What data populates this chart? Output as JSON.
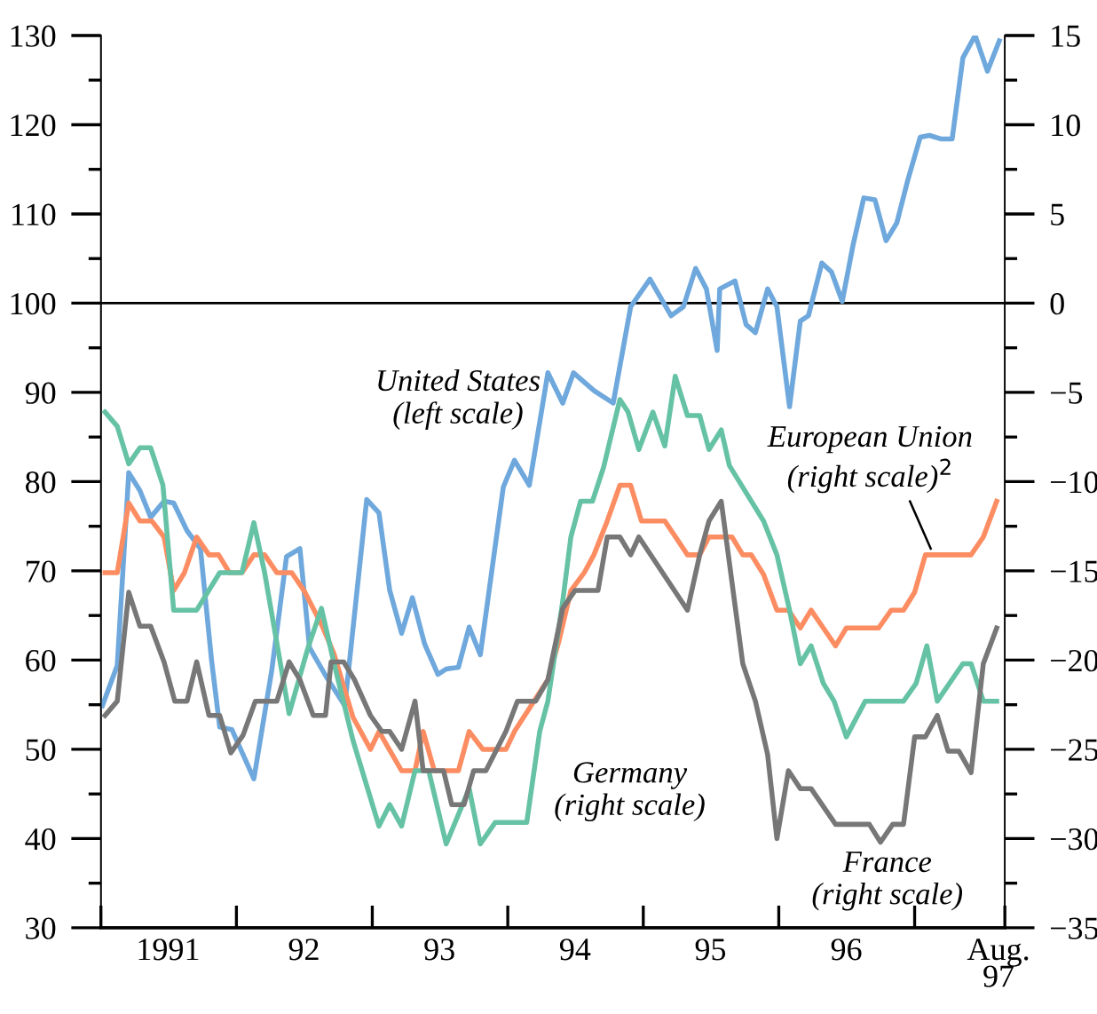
{
  "chart_data": {
    "type": "line",
    "xlim": [
      "1991-01-01",
      "1997-09-01"
    ],
    "xticks": [
      {
        "value": "1991-01-01",
        "label": null
      },
      {
        "value": "1992-01-01",
        "label": null
      },
      {
        "value": "1993-01-01",
        "label": null
      },
      {
        "value": "1994-01-01",
        "label": null
      },
      {
        "value": "1995-01-01",
        "label": null
      },
      {
        "value": "1996-01-01",
        "label": null
      },
      {
        "value": "1997-01-01",
        "label": null
      },
      {
        "value": "1997-09-01",
        "label": null
      },
      {
        "value": "1991-07-01",
        "label": "1991"
      },
      {
        "value": "1992-07-01",
        "label": "92"
      },
      {
        "value": "1993-07-01",
        "label": "93"
      },
      {
        "value": "1994-07-01",
        "label": "94"
      },
      {
        "value": "1995-07-01",
        "label": "95"
      },
      {
        "value": "1996-07-01",
        "label": "96"
      },
      {
        "value": "1997-08-15",
        "label": "Aug.\n97"
      }
    ],
    "ylim": [
      30,
      130
    ],
    "yticks": [
      30,
      {
        "value": 35,
        "label": null
      },
      40,
      {
        "value": 45,
        "label": null
      },
      50,
      {
        "value": 55,
        "label": null
      },
      60,
      {
        "value": 65,
        "label": null
      },
      70,
      {
        "value": 75,
        "label": null
      },
      80,
      {
        "value": 85,
        "label": null
      },
      90,
      {
        "value": 95,
        "label": null
      },
      100,
      {
        "value": 105,
        "label": null
      },
      110,
      {
        "value": 115,
        "label": null
      },
      120,
      {
        "value": 125,
        "label": null
      },
      130
    ],
    "y2lim": [
      -35,
      15
    ],
    "y2ticks": [
      -35,
      {
        "value": -32.5,
        "label": null
      },
      -30,
      {
        "value": -27.5,
        "label": null
      },
      -25,
      {
        "value": -22.5,
        "label": null
      },
      -20,
      {
        "value": -17.5,
        "label": null
      },
      -15,
      {
        "value": -12.5,
        "label": null
      },
      -10,
      {
        "value": -7.5,
        "label": null
      },
      -5,
      {
        "value": -2.5,
        "label": null
      },
      0,
      {
        "value": 2.5,
        "label": null
      },
      5,
      {
        "value": 7.5,
        "label": null
      },
      10,
      {
        "value": 12.5,
        "label": null
      },
      15
    ],
    "ref_lines": [
      {
        "axis": "y",
        "value": 100,
        "color": "#000000"
      }
    ],
    "grid": false,
    "legend": false,
    "marker": "none",
    "line_style": "solid",
    "series": [
      {
        "name": "United States\n(left scale)",
        "color": "#6fa8dc",
        "axis": "y",
        "x": [
          "1991-01-05",
          "1991-02-14",
          "1991-03-17",
          "1991-04-16",
          "1991-05-15",
          "1991-06-20",
          "1991-07-16",
          "1991-08-21",
          "1991-09-26",
          "1991-10-26",
          "1991-11-17",
          "1991-12-20",
          "1992-02-17",
          "1992-04-05",
          "1992-05-15",
          "1992-06-20",
          "1992-07-16",
          "1992-09-01",
          "1992-10-19",
          "1992-12-17",
          "1993-01-19",
          "1993-02-17",
          "1993-03-21",
          "1993-04-19",
          "1993-05-22",
          "1993-06-27",
          "1993-07-19",
          "1993-08-21",
          "1993-09-19",
          "1993-10-19",
          "1993-12-20",
          "1994-01-19",
          "1994-02-28",
          "1994-04-19",
          "1994-05-29",
          "1994-06-27",
          "1994-08-21",
          "1994-10-12",
          "1994-11-28",
          "1995-01-19",
          "1995-03-17",
          "1995-04-19",
          "1995-05-22",
          "1995-06-20",
          "1995-07-19",
          "1995-07-26",
          "1995-09-05",
          "1995-10-05",
          "1995-10-30",
          "1995-12-02",
          "1995-12-27",
          "1996-01-30",
          "1996-02-28",
          "1996-03-21",
          "1996-04-26",
          "1996-05-22",
          "1996-06-20",
          "1996-07-19",
          "1996-08-17",
          "1996-09-16",
          "1996-10-16",
          "1996-11-14",
          "1996-12-13",
          "1997-01-16",
          "1997-02-10",
          "1997-03-14",
          "1997-04-12",
          "1997-05-11",
          "1997-06-13",
          "1997-07-16",
          "1997-08-17"
        ],
        "values": [
          54.9,
          59.4,
          81,
          79,
          76,
          77.8,
          77.6,
          74.5,
          72.5,
          60,
          52.5,
          52.2,
          46.7,
          58.8,
          71.6,
          72.5,
          61.4,
          58,
          54.9,
          78,
          76.5,
          67.8,
          63,
          67,
          61.8,
          58.4,
          59,
          59.2,
          63.7,
          60.6,
          79.4,
          82.4,
          79.6,
          92.2,
          88.8,
          92.2,
          90.2,
          88.8,
          99.6,
          102.7,
          98.6,
          99.6,
          103.9,
          101.6,
          94.7,
          101.6,
          102.5,
          97.6,
          96.7,
          101.6,
          99.6,
          88.4,
          98,
          98.6,
          104.5,
          103.5,
          100.2,
          106.5,
          111.8,
          111.6,
          107,
          109,
          113.7,
          118.6,
          118.8,
          118.4,
          118.4,
          127.5,
          130,
          126,
          129.4
        ]
      },
      {
        "name": "European Union\n(right scale)$^{2}$",
        "color": "#fc8d62",
        "axis": "y2",
        "x": [
          "1991-01-12",
          "1991-02-14",
          "1991-03-17",
          "1991-04-16",
          "1991-05-18",
          "1991-06-20",
          "1991-07-16",
          "1991-08-14",
          "1991-09-16",
          "1991-10-19",
          "1991-11-14",
          "1991-12-13",
          "1992-01-16",
          "1992-02-17",
          "1992-03-17",
          "1992-04-19",
          "1992-05-29",
          "1992-07-01",
          "1992-08-17",
          "1992-09-19",
          "1992-11-10",
          "1992-12-27",
          "1993-01-19",
          "1993-03-21",
          "1993-04-26",
          "1993-05-18",
          "1993-06-17",
          "1993-08-21",
          "1993-09-19",
          "1993-10-26",
          "1993-12-27",
          "1994-01-19",
          "1994-04-19",
          "1994-05-18",
          "1994-06-20",
          "1994-07-26",
          "1994-08-21",
          "1994-09-26",
          "1994-10-30",
          "1994-11-28",
          "1994-12-27",
          "1995-02-28",
          "1995-04-30",
          "1995-06-02",
          "1995-06-27",
          "1995-08-28",
          "1995-09-26",
          "1995-10-19",
          "1995-11-21",
          "1995-12-27",
          "1996-01-27",
          "1996-02-28",
          "1996-03-28",
          "1996-04-30",
          "1996-06-02",
          "1996-07-01",
          "1996-09-26",
          "1996-10-30",
          "1996-12-02",
          "1997-01-01",
          "1997-01-30",
          "1997-06-02",
          "1997-07-05",
          "1997-08-10"
        ],
        "values": [
          -15.1,
          -15.1,
          -11.2,
          -12.2,
          -12.2,
          -13.1,
          -16.1,
          -15.1,
          -13.1,
          -14.1,
          -14.1,
          -15.1,
          -15.1,
          -14.1,
          -14.1,
          -15.1,
          -15.1,
          -16.1,
          -18,
          -19.6,
          -23.2,
          -25,
          -24,
          -26.2,
          -26.2,
          -24,
          -26.2,
          -26.2,
          -24,
          -25,
          -25,
          -24,
          -21.1,
          -19,
          -16.1,
          -15.1,
          -14.1,
          -12.2,
          -10.2,
          -10.2,
          -12.2,
          -12.2,
          -14.1,
          -14.1,
          -13.1,
          -13.1,
          -14.1,
          -14.1,
          -15.2,
          -17.2,
          -17.2,
          -18.2,
          -17.2,
          -18.2,
          -19.2,
          -18.2,
          -18.2,
          -17.2,
          -17.2,
          -16.2,
          -14.1,
          -14.1,
          -13.1,
          -11.1
        ]
      },
      {
        "name": "Germany\n(right scale)",
        "color": "#66c2a5",
        "axis": "y2",
        "x": [
          "1991-01-12",
          "1991-02-14",
          "1991-03-17",
          "1991-04-16",
          "1991-05-15",
          "1991-06-17",
          "1991-07-16",
          "1991-09-16",
          "1991-11-17",
          "1992-01-16",
          "1992-02-17",
          "1992-03-17",
          "1992-05-22",
          "1992-07-12",
          "1992-08-17",
          "1992-09-19",
          "1992-11-10",
          "1993-01-19",
          "1993-02-17",
          "1993-03-21",
          "1993-04-26",
          "1993-06-02",
          "1993-07-19",
          "1993-09-19",
          "1993-10-19",
          "1993-11-28",
          "1994-02-21",
          "1994-03-28",
          "1994-04-19",
          "1994-05-29",
          "1994-06-20",
          "1994-07-16",
          "1994-08-17",
          "1994-09-16",
          "1994-10-30",
          "1994-11-21",
          "1994-12-20",
          "1995-01-27",
          "1995-02-28",
          "1995-03-28",
          "1995-04-30",
          "1995-06-02",
          "1995-06-27",
          "1995-07-30",
          "1995-08-21",
          "1995-11-21",
          "1995-12-27",
          "1996-01-30",
          "1996-02-28",
          "1996-03-28",
          "1996-04-30",
          "1996-05-29",
          "1996-07-01",
          "1996-08-21",
          "1996-12-02",
          "1997-01-05",
          "1997-02-03",
          "1997-03-03",
          "1997-05-11",
          "1997-06-02",
          "1997-07-05",
          "1997-08-10"
        ],
        "values": [
          -6.1,
          -6.9,
          -9,
          -8.1,
          -8.1,
          -10.2,
          -17.2,
          -17.2,
          -15.1,
          -15.1,
          -12.3,
          -15.1,
          -23,
          -19.3,
          -17.1,
          -20.1,
          -24.5,
          -29.3,
          -28.1,
          -29.3,
          -26.2,
          -26.2,
          -30.3,
          -27.2,
          -30.3,
          -29.1,
          -29.1,
          -24,
          -22.3,
          -16.7,
          -13.1,
          -11.1,
          -11.1,
          -9.2,
          -5.4,
          -6.1,
          -8.2,
          -6.1,
          -8,
          -4.1,
          -6.3,
          -6.3,
          -8.2,
          -7.1,
          -9.1,
          -12.2,
          -14.1,
          -17.2,
          -20.2,
          -19.2,
          -21.3,
          -22.3,
          -24.3,
          -22.3,
          -22.3,
          -21.3,
          -19.2,
          -22.3,
          -20.2,
          -20.2,
          -22.3,
          -22.3
        ]
      },
      {
        "name": "France\n(right scale)",
        "color": "#777777",
        "axis": "y2",
        "x": [
          "1991-01-12",
          "1991-02-14",
          "1991-03-17",
          "1991-04-16",
          "1991-05-15",
          "1991-06-20",
          "1991-07-19",
          "1991-08-21",
          "1991-09-16",
          "1991-10-19",
          "1991-11-17",
          "1991-12-17",
          "1992-01-19",
          "1992-02-21",
          "1992-04-19",
          "1992-05-22",
          "1992-06-20",
          "1992-07-26",
          "1992-08-28",
          "1992-09-12",
          "1992-10-16",
          "1992-11-14",
          "1992-12-27",
          "1993-01-27",
          "1993-02-17",
          "1993-03-21",
          "1993-04-26",
          "1993-05-18",
          "1993-07-12",
          "1993-08-03",
          "1993-09-05",
          "1993-10-01",
          "1993-11-03",
          "1993-12-27",
          "1994-01-27",
          "1994-03-17",
          "1994-04-19",
          "1994-05-29",
          "1994-07-01",
          "1994-07-30",
          "1994-09-01",
          "1994-09-26",
          "1994-10-30",
          "1994-11-28",
          "1994-12-20",
          "1995-04-30",
          "1995-06-02",
          "1995-06-27",
          "1995-07-30",
          "1995-09-26",
          "1995-10-30",
          "1995-12-02",
          "1995-12-27",
          "1996-01-27",
          "1996-02-28",
          "1996-03-28",
          "1996-06-02",
          "1996-09-01",
          "1996-10-01",
          "1996-11-03",
          "1996-12-02",
          "1997-01-01",
          "1997-01-30",
          "1997-03-03",
          "1997-04-01",
          "1997-04-30",
          "1997-06-02",
          "1997-07-05",
          "1997-08-10"
        ],
        "values": [
          -23.1,
          -22.3,
          -16.2,
          -18.1,
          -18.1,
          -20.1,
          -22.3,
          -22.3,
          -20.1,
          -23.1,
          -23.1,
          -25.2,
          -24.2,
          -22.3,
          -22.3,
          -20.1,
          -21.1,
          -23.1,
          -23.1,
          -20.1,
          -20.1,
          -21.1,
          -23.1,
          -24,
          -24,
          -25,
          -22.3,
          -26.2,
          -26.2,
          -28.1,
          -28.1,
          -26.2,
          -26.2,
          -24,
          -22.3,
          -22.3,
          -21.1,
          -17.1,
          -16.1,
          -16.1,
          -16.1,
          -13.1,
          -13.1,
          -14.1,
          -13.1,
          -17.2,
          -14.1,
          -12.2,
          -11.1,
          -20.2,
          -22.3,
          -25.3,
          -30,
          -26.2,
          -27.2,
          -27.2,
          -29.2,
          -29.2,
          -30.2,
          -29.2,
          -29.2,
          -24.3,
          -24.3,
          -23.1,
          -25.1,
          -25.1,
          -26.3,
          -20.2,
          -18.2
        ]
      }
    ]
  }
}
